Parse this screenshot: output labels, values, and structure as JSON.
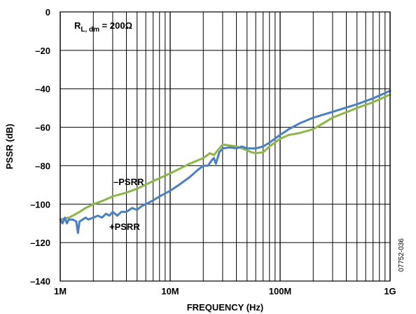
{
  "chart_data": {
    "type": "line",
    "xlabel": "FREQUENCY (Hz)",
    "ylabel": "PSSR (dB)",
    "x_scale": "log",
    "xlim": [
      1000000,
      1000000000
    ],
    "ylim": [
      -140,
      0
    ],
    "grid": true,
    "x_ticks": [
      {
        "value": 1000000,
        "label": "1M"
      },
      {
        "value": 10000000,
        "label": "10M"
      },
      {
        "value": 100000000,
        "label": "100M"
      },
      {
        "value": 1000000000,
        "label": "1G"
      }
    ],
    "y_ticks": [
      {
        "value": 0,
        "label": "0"
      },
      {
        "value": -20,
        "label": "–20"
      },
      {
        "value": -40,
        "label": "–40"
      },
      {
        "value": -60,
        "label": "–60"
      },
      {
        "value": -80,
        "label": "–80"
      },
      {
        "value": -100,
        "label": "–100"
      },
      {
        "value": -120,
        "label": "–120"
      },
      {
        "value": -140,
        "label": "–140"
      }
    ],
    "annotations": {
      "condition_main": "R",
      "condition_sub": "L, dm",
      "condition_rest": " = 200Ω",
      "figure_id": "07752-036"
    },
    "series": [
      {
        "name": "–PSRR",
        "color": "#8db64a",
        "x": [
          1000000,
          1100000,
          1200000,
          1300000,
          1500000,
          1700000,
          2000000,
          2500000,
          3000000,
          4000000,
          5000000,
          7000000,
          10000000,
          15000000,
          20000000,
          23000000,
          25000000,
          28000000,
          30000000,
          35000000,
          40000000,
          45000000,
          50000000,
          55000000,
          60000000,
          70000000,
          80000000,
          100000000,
          120000000,
          150000000,
          200000000,
          300000000,
          500000000,
          700000000,
          1000000000
        ],
        "y": [
          -108,
          -107.5,
          -107,
          -106,
          -104,
          -102,
          -100,
          -98,
          -96,
          -94,
          -92,
          -88,
          -84,
          -79,
          -76,
          -73.5,
          -74.5,
          -71,
          -69,
          -69.5,
          -70,
          -71,
          -72,
          -73,
          -73.5,
          -73,
          -70,
          -66,
          -64,
          -63,
          -61,
          -55,
          -50,
          -47,
          -43
        ]
      },
      {
        "name": "+PSRR",
        "color": "#4a7fc1",
        "x": [
          1000000,
          1050000,
          1100000,
          1150000,
          1200000,
          1300000,
          1400000,
          1450000,
          1500000,
          1600000,
          1700000,
          1800000,
          2000000,
          2200000,
          2400000,
          2600000,
          2800000,
          3000000,
          3300000,
          3600000,
          4000000,
          4500000,
          5000000,
          5500000,
          6000000,
          7000000,
          8000000,
          10000000,
          12000000,
          15000000,
          18000000,
          20000000,
          22000000,
          24000000,
          25000000,
          26000000,
          28000000,
          30000000,
          35000000,
          40000000,
          45000000,
          50000000,
          60000000,
          70000000,
          80000000,
          100000000,
          120000000,
          150000000,
          200000000,
          300000000,
          500000000,
          700000000,
          1000000000
        ],
        "y": [
          -108,
          -110,
          -107,
          -110,
          -108,
          -108,
          -109,
          -115,
          -109,
          -108,
          -107,
          -108,
          -107,
          -106,
          -107,
          -105,
          -106,
          -104,
          -106,
          -104,
          -104,
          -102,
          -103,
          -101,
          -100,
          -98,
          -96,
          -93,
          -90,
          -86,
          -82,
          -80,
          -80,
          -77,
          -76,
          -79,
          -73,
          -71,
          -70.5,
          -71,
          -70,
          -71,
          -71,
          -70,
          -68,
          -64,
          -61,
          -58,
          -55,
          -52,
          -48,
          -45,
          -41
        ]
      }
    ]
  }
}
